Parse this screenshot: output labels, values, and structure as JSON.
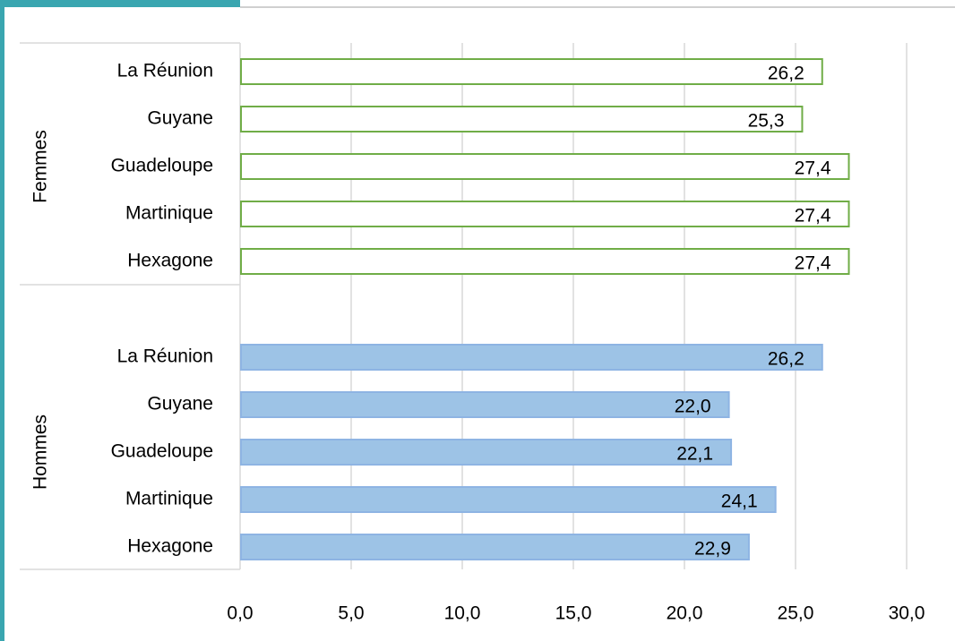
{
  "chart_data": {
    "type": "bar",
    "categories": [
      "La Réunion",
      "Guyane",
      "Guadeloupe",
      "Martinique",
      "Hexagone"
    ],
    "series": [
      {
        "name": "Femmes",
        "color": "#70ad47",
        "fill": "#ffffff",
        "values": [
          26.2,
          25.3,
          27.4,
          27.4,
          27.4
        ],
        "value_labels": [
          "26,2",
          "25,3",
          "27,4",
          "27,4",
          "27,4"
        ]
      },
      {
        "name": "Hommes",
        "color": "#8eb4e3",
        "fill": "#9dc3e6",
        "values": [
          26.2,
          22.0,
          22.1,
          24.1,
          22.9
        ],
        "value_labels": [
          "26,2",
          "22,0",
          "22,1",
          "24,1",
          "22,9"
        ]
      }
    ],
    "xlim": [
      0,
      30
    ],
    "xticks": [
      {
        "value": 0,
        "label": "0,0"
      },
      {
        "value": 5,
        "label": "5,0"
      },
      {
        "value": 10,
        "label": "10,0"
      },
      {
        "value": 15,
        "label": "15,0"
      },
      {
        "value": 20,
        "label": "20,0"
      },
      {
        "value": 25,
        "label": "25,0"
      },
      {
        "value": 30,
        "label": "30,0"
      }
    ],
    "grid": true
  }
}
